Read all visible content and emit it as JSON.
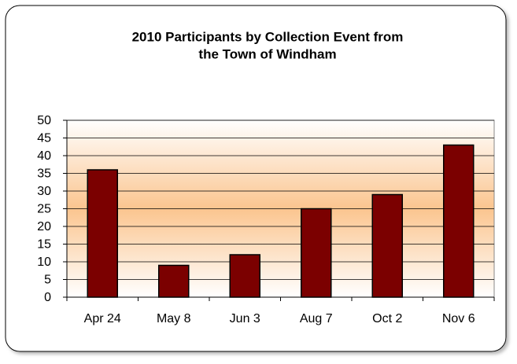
{
  "chart_data": {
    "type": "bar",
    "title": [
      "2010 Participants by Collection Event from",
      "the Town of Windham"
    ],
    "categories": [
      "Apr 24",
      "May 8",
      "Jun 3",
      "Aug 7",
      "Oct 2",
      "Nov 6"
    ],
    "values": [
      36,
      9,
      12,
      25,
      29,
      43
    ],
    "color": "#7b0000",
    "ylim": [
      0,
      50
    ],
    "yticks": [
      0,
      5,
      10,
      15,
      20,
      25,
      30,
      35,
      40,
      45,
      50
    ],
    "grid": true
  }
}
